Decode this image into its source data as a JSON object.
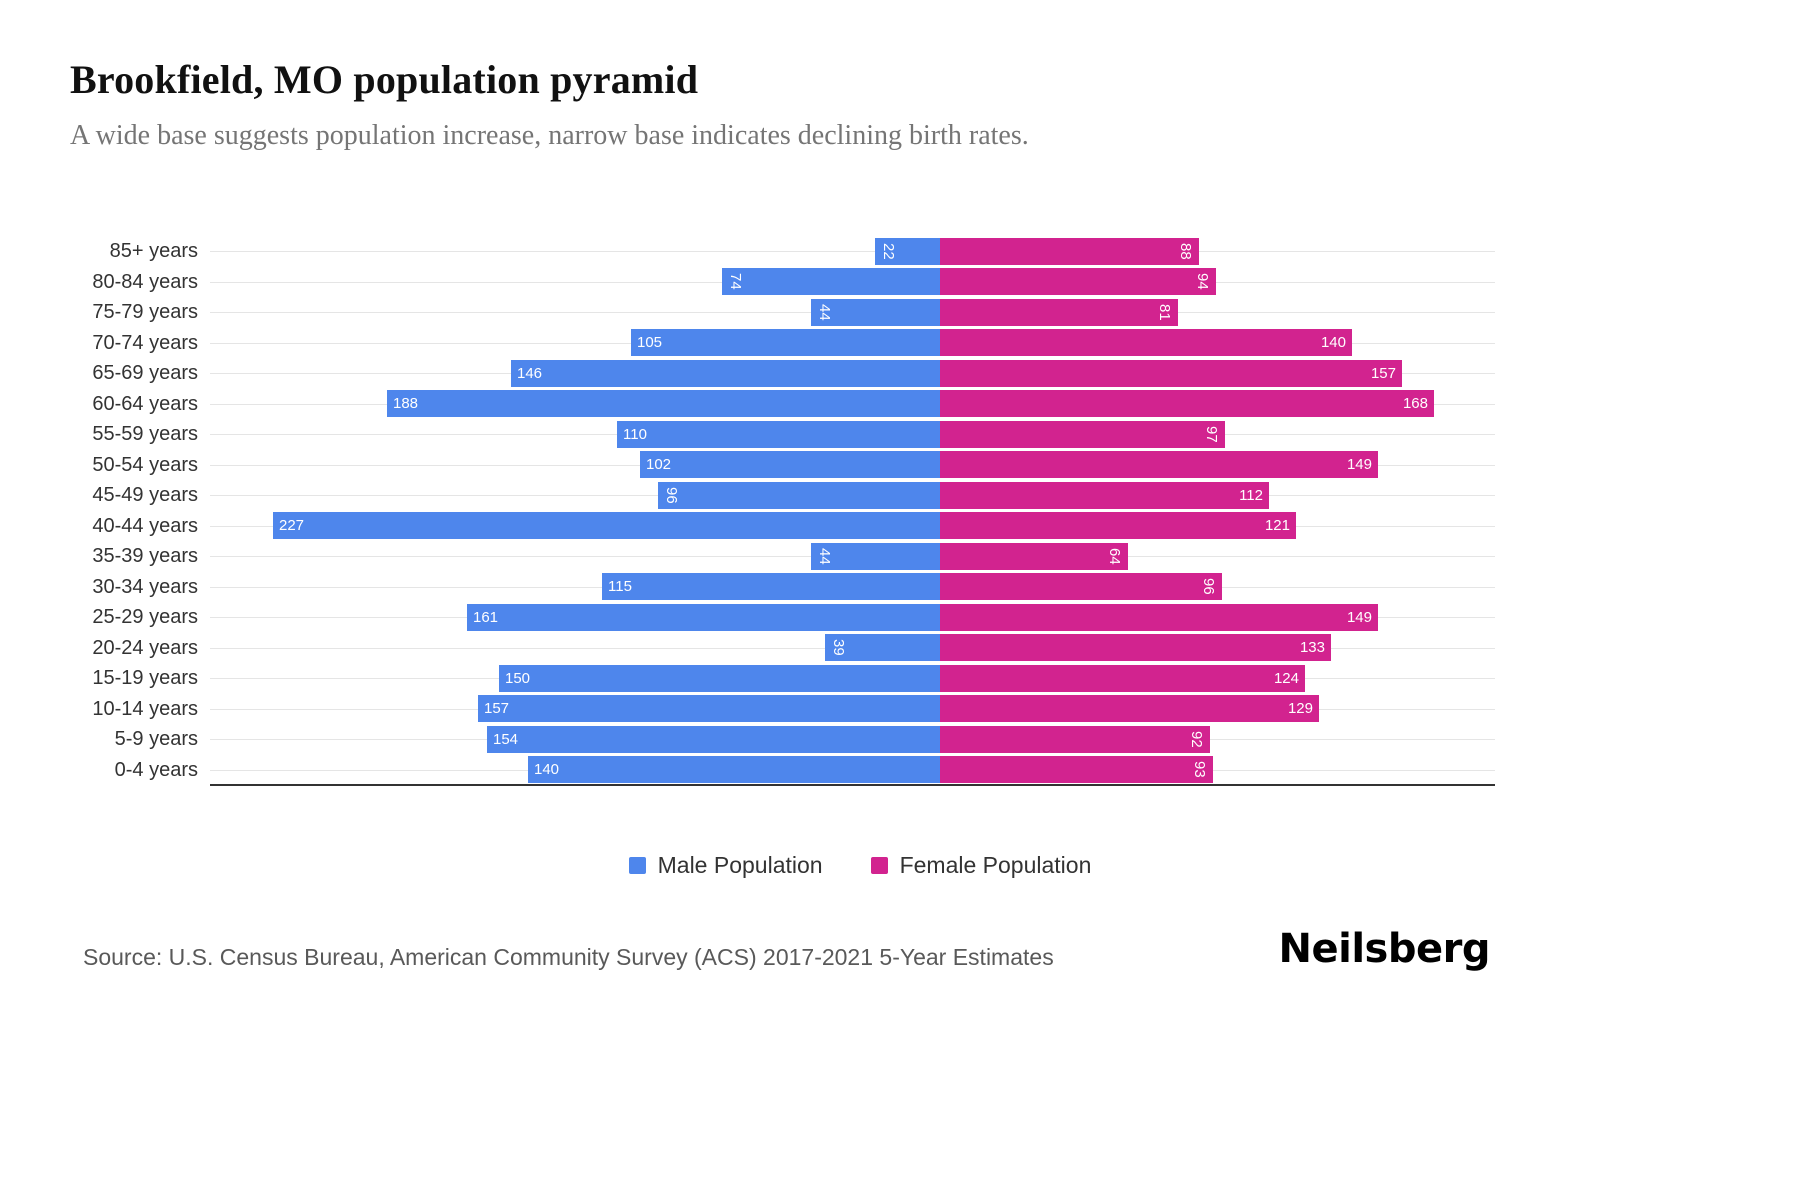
{
  "page": {
    "title": "Brookfield, MO population pyramid",
    "subtitle": "A wide base suggests population increase, narrow base indicates declining birth rates.",
    "source": "Source: U.S. Census Bureau, American Community Survey (ACS) 2017-2021 5-Year Estimates",
    "logo": "Neilsberg"
  },
  "chart_data": {
    "type": "bar",
    "variant": "population-pyramid",
    "title": "Brookfield, MO population pyramid",
    "subtitle": "A wide base suggests population increase, narrow base indicates declining birth rates.",
    "categories": [
      "85+ years",
      "80-84 years",
      "75-79 years",
      "70-74 years",
      "65-69 years",
      "60-64 years",
      "55-59 years",
      "50-54 years",
      "45-49 years",
      "40-44 years",
      "35-39 years",
      "30-34 years",
      "25-29 years",
      "20-24 years",
      "15-19 years",
      "10-14 years",
      "5-9 years",
      "0-4 years"
    ],
    "series": [
      {
        "name": "Male Population",
        "color": "#4e86ec",
        "direction": "left",
        "values": [
          22,
          74,
          44,
          105,
          146,
          188,
          110,
          102,
          96,
          227,
          44,
          115,
          161,
          39,
          150,
          157,
          154,
          140
        ]
      },
      {
        "name": "Female Population",
        "color": "#d2238f",
        "direction": "right",
        "values": [
          88,
          94,
          81,
          140,
          157,
          168,
          97,
          149,
          112,
          121,
          64,
          96,
          149,
          133,
          124,
          129,
          92,
          93
        ]
      }
    ],
    "value_label_color": "#ffffff",
    "legend_position": "bottom",
    "grid": "horizontal",
    "axis": {
      "center": 0,
      "male_side_max": 248,
      "female_side_max": 189
    }
  }
}
